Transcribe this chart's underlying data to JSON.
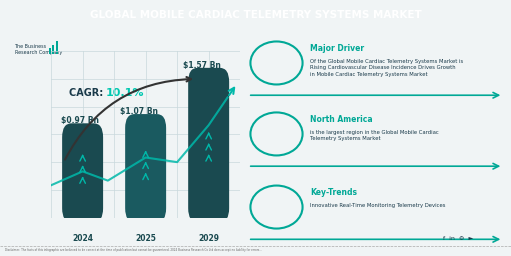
{
  "title": "GLOBAL MOBILE CARDIAC TELEMETRY SYSTEMS MARKET",
  "title_bg": "#1a3a4a",
  "title_color": "#ffffff",
  "bg_color": "#f0f4f5",
  "bar_years": [
    "2024",
    "2025",
    "2029"
  ],
  "bar_values": [
    0.97,
    1.07,
    1.57
  ],
  "bar_labels": [
    "$0.97 Bn",
    "$1.07 Bn",
    "$1.57 Bn"
  ],
  "bar_color_dark": "#1a4a50",
  "bar_color_mid": "#1a5a60",
  "teal_accent": "#00b8a9",
  "cagr_text": "CAGR: ",
  "cagr_value": "10.1%",
  "cagr_color": "#00c8b0",
  "cagr_text_color": "#1a3a4a",
  "grid_color": "#c8d8dc",
  "logo_text": "The Business\nResearch Company",
  "right_panels": [
    {
      "title": "Major Driver",
      "body": "Of the Global Mobile Cardiac Telemetry Systems Market is\nRising Cardiovascular Disease Incidence Drives Growth\nin Mobile Cardiac Telemetry Systems Market"
    },
    {
      "title": "North America",
      "body": "is the largest region in the Global Mobile Cardiac\nTelemetry Systems Market"
    },
    {
      "title": "Key-Trends",
      "body": "Innovative Real-Time Monitoring Telemetry Devices"
    }
  ],
  "panel_title_color": "#00a896",
  "panel_body_color": "#1a3a4a",
  "arrow_color": "#00a896",
  "circle_color": "#00a896",
  "social_icons_color": "#1a3a4a",
  "divider_color": "#aaaaaa"
}
